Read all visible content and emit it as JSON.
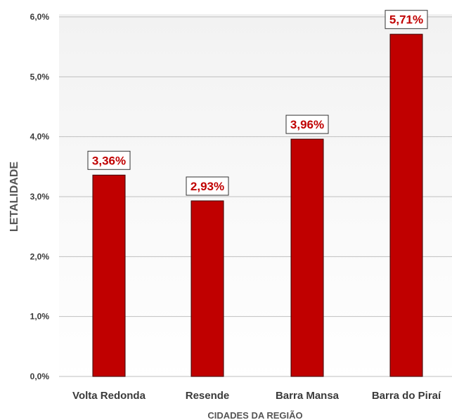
{
  "chart_data": {
    "type": "bar",
    "title": "",
    "xlabel": "CIDADES DA REGIÃO",
    "ylabel": "LETALIDADE",
    "categories": [
      "Volta Redonda",
      "Resende",
      "Barra Mansa",
      "Barra do Piraí"
    ],
    "values": [
      3.36,
      2.93,
      3.96,
      5.71
    ],
    "data_labels": [
      "3,36%",
      "2,93%",
      "3,96%",
      "5,71%"
    ],
    "ylim": [
      0,
      6
    ],
    "y_ticks": [
      0,
      1,
      2,
      3,
      4,
      5,
      6
    ],
    "y_tick_labels": [
      "0,0%",
      "1,0%",
      "2,0%",
      "3,0%",
      "4,0%",
      "5,0%",
      "6,0%"
    ],
    "grid": true,
    "legend": "none",
    "colors": {
      "bar": "#c00000",
      "bar_edge": "#3a0000",
      "data_label_text": "#c00000",
      "data_label_border": "#333333",
      "grid": "#bfbfbf",
      "plot_bg_top": "#f2f2f2",
      "plot_bg_bottom": "#ffffff"
    }
  }
}
